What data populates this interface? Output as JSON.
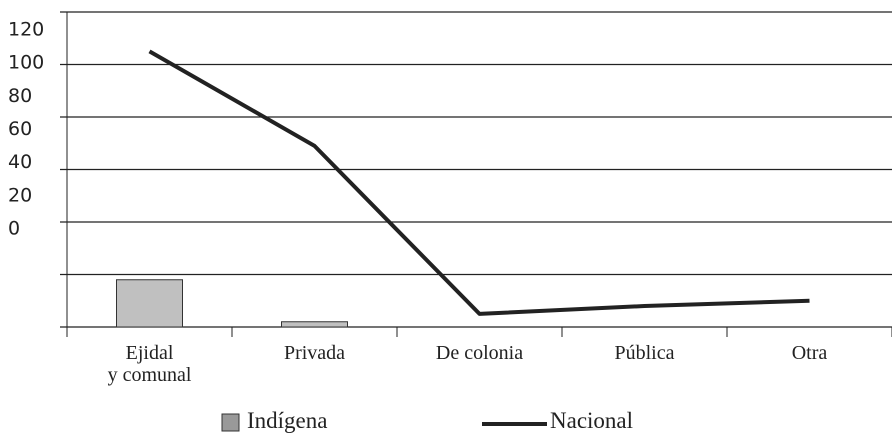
{
  "chart_data": {
    "type": "bar_line",
    "categories": [
      "Ejidal\ny comunal",
      "Privada",
      "De colonia",
      "Pública",
      "Otra"
    ],
    "series": [
      {
        "name": "Indígena",
        "type": "bar",
        "color": "#c0c0c0",
        "values": [
          18,
          2,
          null,
          null,
          null
        ]
      },
      {
        "name": "Nacional",
        "type": "line",
        "color": "#222222",
        "values": [
          105,
          69,
          5,
          8,
          10
        ]
      }
    ],
    "ylim": [
      0,
      120
    ],
    "yticks": [
      0,
      20,
      40,
      60,
      80,
      100,
      120
    ],
    "grid": true,
    "legend": "bottom"
  }
}
